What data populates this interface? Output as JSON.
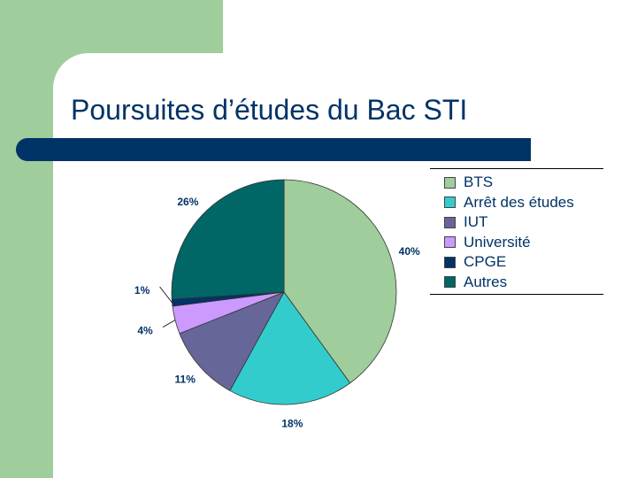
{
  "page": {
    "title": "Poursuites d’études du Bac STI"
  },
  "chart_data": {
    "type": "pie",
    "title": "",
    "categories": [
      "BTS",
      "Arrêt des études",
      "IUT",
      "Université",
      "CPGE",
      "Autres"
    ],
    "values": [
      40,
      18,
      11,
      4,
      1,
      26
    ],
    "value_labels": [
      "40%",
      "18%",
      "11%",
      "4%",
      "1%",
      "26%"
    ],
    "colors": [
      "#9fcd9c",
      "#33cccc",
      "#666699",
      "#cc99ff",
      "#003366",
      "#006666"
    ],
    "legend_position": "right",
    "start_angle_deg": 0,
    "direction": "clockwise"
  }
}
